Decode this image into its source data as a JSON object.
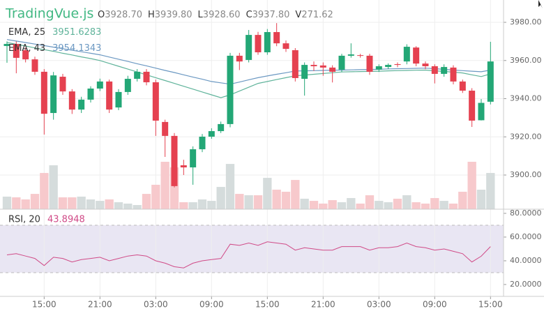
{
  "chart_data": {
    "type": "candlestick",
    "title": "TradingVue.js",
    "ohlcv_legend": [
      {
        "key": "O",
        "value": "3928.70"
      },
      {
        "key": "H",
        "value": "3939.80"
      },
      {
        "key": "L",
        "value": "3928.60"
      },
      {
        "key": "C",
        "value": "3937.80"
      },
      {
        "key": "V",
        "value": "271.62"
      }
    ],
    "categories": [
      null,
      null,
      null,
      null,
      "15:00",
      null,
      null,
      null,
      null,
      null,
      "21:00",
      null,
      null,
      null,
      null,
      null,
      "03:00",
      null,
      null,
      null,
      null,
      null,
      "09:00",
      null,
      null,
      null,
      null,
      null,
      "15:00",
      null,
      null,
      null,
      null,
      null,
      "21:00",
      null,
      null,
      null,
      null,
      null,
      "03:00",
      null,
      null,
      null,
      null,
      null,
      "09:00",
      null,
      null,
      null,
      null,
      null,
      "15:00"
    ],
    "open": [
      3967.6,
      3968.7,
      3965.4,
      3960.6,
      3954.1,
      3932.5,
      3951.5,
      3943.8,
      3934.3,
      3939.5,
      3945.3,
      3949.0,
      3935.4,
      3943.5,
      3950.4,
      3954.1,
      3948.6,
      3927.8,
      3920.5,
      3905.1,
      3904.0,
      3913.5,
      3920.1,
      3923.0,
      3926.7,
      3962.5,
      3960.3,
      3973.4,
      3964.3,
      3974.9,
      3969.0,
      3965.4,
      3950.4,
      3957.7,
      3957.4,
      3956.3,
      3955.2,
      3962.5,
      3962.8,
      3962.5,
      3955.2,
      3956.6,
      3958.1,
      3959.5,
      3966.8,
      3958.4,
      3957.0,
      3953.0,
      3956.3,
      3949.0,
      3944.2,
      3928.7,
      3938.4
    ],
    "high": [
      3970.0,
      3970.0,
      3966.8,
      3962.0,
      3955.5,
      3954.0,
      3953.0,
      3945.0,
      3941.0,
      3946.5,
      3950.5,
      3950.0,
      3945.0,
      3952.0,
      3955.5,
      3955.5,
      3950.0,
      3929.0,
      3922.0,
      3908.0,
      3915.0,
      3921.5,
      3924.5,
      3928.0,
      3964.0,
      3964.0,
      3976.0,
      3975.0,
      3976.5,
      3979.6,
      3970.5,
      3966.5,
      3959.0,
      3959.5,
      3959.0,
      3957.5,
      3963.5,
      3969.0,
      3963.5,
      3963.5,
      3958.0,
      3958.5,
      3959.0,
      3968.5,
      3967.5,
      3959.5,
      3958.0,
      3958.0,
      3957.5,
      3950.0,
      3945.5,
      3939.8,
      3969.8
    ],
    "low": [
      3958.8,
      3953.3,
      3959.0,
      3952.5,
      3921.2,
      3929.0,
      3942.0,
      3932.0,
      3932.5,
      3938.0,
      3944.0,
      3932.5,
      3934.0,
      3942.0,
      3949.0,
      3947.0,
      3920.5,
      3909.5,
      3893.5,
      3900.0,
      3894.9,
      3912.0,
      3919.0,
      3922.0,
      3925.0,
      3955.0,
      3959.0,
      3963.0,
      3963.0,
      3967.5,
      3964.5,
      3949.0,
      3941.6,
      3954.5,
      3952.0,
      3948.5,
      3954.0,
      3961.5,
      3961.5,
      3952.5,
      3954.0,
      3955.5,
      3956.5,
      3958.0,
      3957.0,
      3955.5,
      3948.0,
      3951.5,
      3947.5,
      3943.0,
      3925.2,
      3928.6,
      3937.0
    ],
    "close": [
      3968.7,
      3961.4,
      3960.6,
      3954.1,
      3932.1,
      3952.2,
      3943.8,
      3934.3,
      3939.5,
      3945.3,
      3949.0,
      3934.3,
      3943.5,
      3950.4,
      3954.1,
      3948.6,
      3928.5,
      3920.5,
      3894.2,
      3904.0,
      3913.5,
      3920.1,
      3923.0,
      3926.7,
      3962.5,
      3959.5,
      3973.4,
      3964.3,
      3974.9,
      3969.0,
      3966.1,
      3950.8,
      3957.7,
      3957.0,
      3956.3,
      3954.1,
      3962.5,
      3963.2,
      3962.5,
      3954.1,
      3957.0,
      3957.7,
      3957.7,
      3967.2,
      3958.4,
      3957.0,
      3953.0,
      3956.6,
      3949.0,
      3944.2,
      3928.5,
      3937.8,
      3959.5
    ],
    "volume": [
      175,
      165,
      136,
      213,
      504,
      611,
      165,
      165,
      175,
      136,
      116,
      136,
      97,
      78,
      58,
      213,
      340,
      660,
      582,
      97,
      97,
      136,
      116,
      310,
      630,
      213,
      194,
      194,
      436,
      272,
      243,
      407,
      146,
      116,
      78,
      126,
      97,
      155,
      78,
      194,
      116,
      97,
      146,
      194,
      97,
      78,
      155,
      116,
      78,
      243,
      660,
      271.62,
      504
    ],
    "up_color": "#23a776",
    "down_color": "#e54150",
    "volume_up_color": "#d5dcdc",
    "volume_down_color": "#f7c9cc",
    "series": [
      {
        "name": "EMA, 25",
        "value_label": "3951.6283",
        "color": "#5fb39a",
        "values": [
          3969.5,
          3968.5,
          3967.6,
          3966.6,
          3965.7,
          3964.8,
          3963.8,
          3962.9,
          3961.9,
          3961.0,
          3960.0,
          3958.5,
          3957.0,
          3955.5,
          3954.0,
          3952.5,
          3951.0,
          3949.5,
          3948.0,
          3946.5,
          3945.0,
          3943.5,
          3942.0,
          3940.5,
          3942.0,
          3944.0,
          3946.0,
          3948.0,
          3949.0,
          3950.0,
          3951.0,
          3952.0,
          3952.4,
          3952.8,
          3953.2,
          3953.6,
          3954.0,
          3954.1,
          3954.2,
          3954.3,
          3954.4,
          3954.6,
          3954.7,
          3954.8,
          3954.9,
          3955.0,
          3954.6,
          3954.3,
          3953.9,
          3953.5,
          3952.5,
          3951.6,
          3953.0
        ]
      },
      {
        "name": "EMA, 43",
        "value_label": "3954.1343",
        "color": "#6b98c2",
        "values": [
          3971.0,
          3970.2,
          3969.4,
          3968.6,
          3967.8,
          3967.0,
          3966.2,
          3965.4,
          3964.6,
          3963.8,
          3963.0,
          3961.8,
          3960.7,
          3959.5,
          3958.3,
          3957.2,
          3956.0,
          3954.8,
          3953.7,
          3952.5,
          3951.3,
          3950.2,
          3949.0,
          3948.3,
          3947.6,
          3948.7,
          3949.9,
          3951.0,
          3951.9,
          3952.8,
          3953.6,
          3954.5,
          3954.6,
          3954.7,
          3954.8,
          3954.9,
          3955.0,
          3955.1,
          3955.2,
          3955.3,
          3955.4,
          3955.6,
          3955.7,
          3955.8,
          3955.9,
          3956.0,
          3955.7,
          3955.4,
          3955.0,
          3954.7,
          3954.4,
          3954.1,
          3955.0
        ]
      }
    ],
    "ylim": [
      3882.1,
      3991.7
    ],
    "yticks": [
      {
        "value": 3900,
        "label": "3900.00"
      },
      {
        "value": 3920,
        "label": "3920.00"
      },
      {
        "value": 3940,
        "label": "3940.00"
      },
      {
        "value": 3960,
        "label": "3960.00"
      },
      {
        "value": 3980,
        "label": "3980.00"
      }
    ],
    "rsi": {
      "name": "RSI, 20",
      "value_label": "43.8948",
      "color": "#d04a87",
      "band": [
        30,
        70
      ],
      "band_color": "#e9e6f3",
      "values": [
        45,
        46,
        44,
        42,
        36,
        43,
        42,
        39,
        41,
        42,
        43,
        40,
        42,
        44,
        45,
        44,
        40,
        38,
        35,
        34,
        38,
        40,
        41,
        42,
        54,
        53,
        55,
        53,
        56,
        55,
        54,
        49,
        51,
        50,
        49,
        49,
        52,
        52,
        52,
        49,
        51,
        51,
        52,
        55,
        52,
        51,
        49,
        50,
        48,
        46,
        39,
        43.89,
        52
      ],
      "ylim": [
        10,
        83.5
      ],
      "yticks": [
        {
          "value": 20,
          "label": "20.0000"
        },
        {
          "value": 40,
          "label": "40.0000"
        },
        {
          "value": 60,
          "label": "60.0000"
        },
        {
          "value": 80,
          "label": "80.0000"
        }
      ]
    }
  }
}
